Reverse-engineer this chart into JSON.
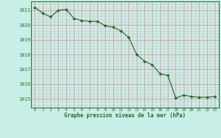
{
  "x": [
    0,
    1,
    2,
    3,
    4,
    5,
    6,
    7,
    8,
    9,
    10,
    11,
    12,
    13,
    14,
    15,
    16,
    17,
    18,
    19,
    20,
    21,
    22,
    23
  ],
  "y": [
    1021.2,
    1020.8,
    1020.55,
    1021.0,
    1021.05,
    1020.45,
    1020.3,
    1020.25,
    1020.25,
    1019.95,
    1019.85,
    1019.6,
    1019.15,
    1018.0,
    1017.55,
    1017.3,
    1016.7,
    1016.58,
    1015.05,
    1015.25,
    1015.15,
    1015.1,
    1015.1,
    1015.15
  ],
  "line_color": "#2d6a2d",
  "marker_color": "#2d6a2d",
  "bg_color": "#c8eee8",
  "grid_color_major": "#d4a0a0",
  "grid_color_minor": "#ddbdbd",
  "title": "Graphe pression niveau de la mer (hPa)",
  "title_color": "#2d6a2d",
  "ylabel_values": [
    1015,
    1016,
    1017,
    1018,
    1019,
    1020,
    1021
  ],
  "xlabel_values": [
    0,
    1,
    2,
    3,
    4,
    5,
    6,
    7,
    8,
    9,
    10,
    11,
    12,
    13,
    14,
    15,
    16,
    17,
    18,
    19,
    20,
    21,
    22,
    23
  ],
  "ylim": [
    1014.4,
    1021.6
  ],
  "xlim": [
    -0.5,
    23.5
  ]
}
